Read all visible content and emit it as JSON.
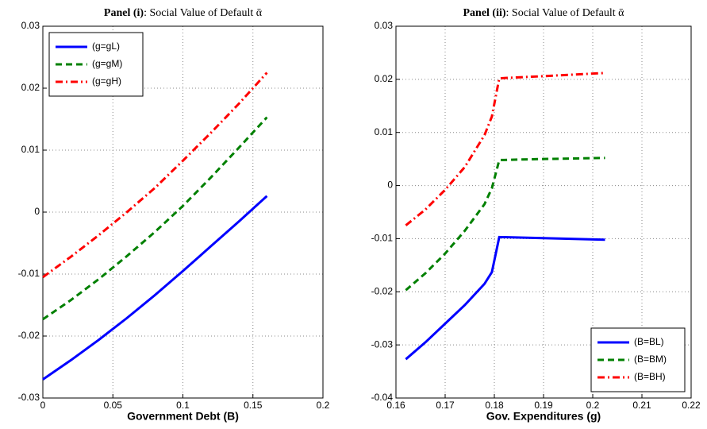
{
  "chart_data": [
    {
      "type": "line",
      "title_lead": "Panel (i)",
      "title": ": Social Value of Default ᾱ",
      "x_label": "Government  Debt (B)",
      "x": [
        0,
        0.02,
        0.04,
        0.06,
        0.08,
        0.1,
        0.12,
        0.14,
        0.16
      ],
      "series": [
        {
          "name": "(g=gL)",
          "color": "#0000ff",
          "style": "solid",
          "values": [
            -0.027,
            -0.0239,
            -0.0206,
            -0.0171,
            -0.0134,
            -0.0095,
            -0.0055,
            -0.0015,
            0.0026
          ]
        },
        {
          "name": "(g=gM)",
          "color": "#008000",
          "style": "dashed",
          "values": [
            -0.0173,
            -0.0142,
            -0.0108,
            -0.0071,
            -0.0032,
            0.001,
            0.0056,
            0.0104,
            0.0153
          ]
        },
        {
          "name": "(g=gH)",
          "color": "#ff0000",
          "style": "dashdot",
          "values": [
            -0.0105,
            -0.0072,
            -0.0037,
            0.0,
            0.0039,
            0.0083,
            0.0128,
            0.0175,
            0.0225
          ]
        }
      ],
      "xlim": [
        0,
        0.2
      ],
      "xticks": [
        0,
        0.05,
        0.1,
        0.15,
        0.2
      ],
      "ylim": [
        -0.03,
        0.03
      ],
      "yticks": [
        -0.03,
        -0.02,
        -0.01,
        0,
        0.01,
        0.02,
        0.03
      ],
      "grid": true,
      "legend": "upper-left"
    },
    {
      "type": "line",
      "title_lead": "Panel (ii)",
      "title": ": Social Value of Default ᾱ",
      "x_label": "Gov. Expenditures (g)",
      "x": [
        0.162,
        0.166,
        0.17,
        0.174,
        0.178,
        0.1795,
        0.181,
        0.19,
        0.2025
      ],
      "series": [
        {
          "name": "(B=BL)",
          "color": "#0000ff",
          "style": "solid",
          "values": [
            -0.0327,
            -0.0295,
            -0.026,
            -0.0225,
            -0.0185,
            -0.0163,
            -0.0097,
            -0.0099,
            -0.0102
          ]
        },
        {
          "name": "(B=BM)",
          "color": "#008000",
          "style": "dashed",
          "values": [
            -0.0197,
            -0.0165,
            -0.0128,
            -0.0085,
            -0.0035,
            -0.0005,
            0.0048,
            0.005,
            0.0052
          ]
        },
        {
          "name": "(B=BH)",
          "color": "#ff0000",
          "style": "dashdot",
          "values": [
            -0.0075,
            -0.0045,
            -0.0008,
            0.0035,
            0.0095,
            0.013,
            0.0202,
            0.0206,
            0.0212
          ]
        }
      ],
      "xlim": [
        0.16,
        0.22
      ],
      "xticks": [
        0.16,
        0.17,
        0.18,
        0.19,
        0.2,
        0.21,
        0.22
      ],
      "ylim": [
        -0.04,
        0.03
      ],
      "yticks": [
        -0.04,
        -0.03,
        -0.02,
        -0.01,
        0,
        0.01,
        0.02,
        0.03
      ],
      "grid": true,
      "legend": "lower-right"
    }
  ]
}
